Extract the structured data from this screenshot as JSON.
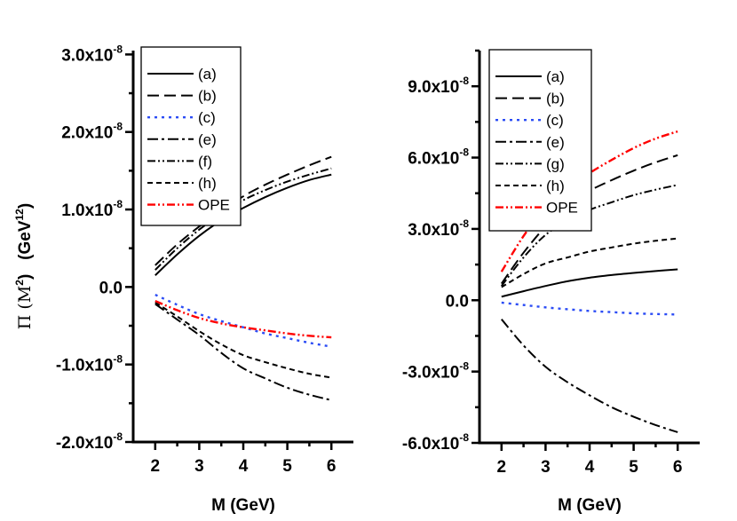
{
  "chart_data": [
    {
      "type": "line",
      "panel": "left",
      "xlabel": "M (GeV)",
      "ylabel": {
        "main": "Π (M",
        "sup1": "2",
        "mid": ")   (GeV",
        "sup2": "12",
        "end": ")"
      },
      "xlim": [
        1.5,
        6.5
      ],
      "ylim": [
        -2e-08,
        3.05e-08
      ],
      "x_ticks": [
        2,
        3,
        4,
        5,
        6
      ],
      "y_ticks": [
        {
          "value": 3e-08,
          "base": "3.0x10",
          "exp": "-8"
        },
        {
          "value": 2e-08,
          "base": "2.0x10",
          "exp": "-8"
        },
        {
          "value": 1e-08,
          "base": "1.0x10",
          "exp": "-8"
        },
        {
          "value": 0,
          "base": "0.0",
          "exp": ""
        },
        {
          "value": -1e-08,
          "base": "-1.0x10",
          "exp": "-8"
        },
        {
          "value": -2e-08,
          "base": "-2.0x10",
          "exp": "-8"
        }
      ],
      "y_minor_step": 5e-09,
      "unit": 1e-08,
      "legend_position": "top-left",
      "x": [
        2,
        2.5,
        3,
        3.5,
        4,
        4.5,
        5,
        5.5,
        6
      ],
      "series": [
        {
          "name": "(a)",
          "color": "#000000",
          "dash": "",
          "values": [
            0.15,
            0.42,
            0.66,
            0.86,
            1.02,
            1.16,
            1.28,
            1.38,
            1.45
          ]
        },
        {
          "name": "(b)",
          "color": "#000000",
          "dash": "13,6",
          "values": [
            0.28,
            0.55,
            0.78,
            0.98,
            1.17,
            1.32,
            1.45,
            1.57,
            1.68
          ]
        },
        {
          "name": "(c)",
          "color": "#2b4cf5",
          "dash": "3,5",
          "values": [
            -0.1,
            -0.23,
            -0.35,
            -0.44,
            -0.52,
            -0.6,
            -0.66,
            -0.72,
            -0.77
          ]
        },
        {
          "name": "(e)",
          "color": "#000000",
          "dash": "12,4,3,4",
          "values": [
            -0.22,
            -0.42,
            -0.62,
            -0.85,
            -1.05,
            -1.18,
            -1.3,
            -1.39,
            -1.46
          ]
        },
        {
          "name": "(f)",
          "color": "#000000",
          "dash": "9,3,2,3,2,3",
          "values": [
            0.22,
            0.5,
            0.74,
            0.94,
            1.12,
            1.25,
            1.36,
            1.45,
            1.53
          ]
        },
        {
          "name": "(h)",
          "color": "#000000",
          "dash": "6,4",
          "values": [
            -0.2,
            -0.38,
            -0.57,
            -0.74,
            -0.88,
            -0.97,
            -1.05,
            -1.12,
            -1.17
          ]
        },
        {
          "name": "OPE",
          "color": "#ff0000",
          "dash": "9,3,2,3,2,3",
          "values": [
            -0.18,
            -0.3,
            -0.4,
            -0.47,
            -0.52,
            -0.56,
            -0.6,
            -0.63,
            -0.65
          ]
        }
      ]
    },
    {
      "type": "line",
      "panel": "right",
      "xlabel": "M (GeV)",
      "xlim": [
        1.5,
        6.5
      ],
      "ylim": [
        -6e-08,
        1.05e-07
      ],
      "x_ticks": [
        2,
        3,
        4,
        5,
        6
      ],
      "y_ticks": [
        {
          "value": 9e-08,
          "base": "9.0x10",
          "exp": "-8"
        },
        {
          "value": 6e-08,
          "base": "6.0x10",
          "exp": "-8"
        },
        {
          "value": 3e-08,
          "base": "3.0x10",
          "exp": "-8"
        },
        {
          "value": 0,
          "base": "0.0",
          "exp": ""
        },
        {
          "value": -3e-08,
          "base": "-3.0x10",
          "exp": "-8"
        },
        {
          "value": -6e-08,
          "base": "-6.0x10",
          "exp": "-8"
        }
      ],
      "y_minor_step": 1.5e-08,
      "unit": 1e-08,
      "legend_position": "top-left",
      "x": [
        2,
        2.5,
        3,
        3.5,
        4,
        4.5,
        5,
        5.5,
        6
      ],
      "series": [
        {
          "name": "(a)",
          "color": "#000000",
          "dash": "",
          "values": [
            0.15,
            0.38,
            0.6,
            0.8,
            0.95,
            1.06,
            1.15,
            1.23,
            1.3
          ]
        },
        {
          "name": "(b)",
          "color": "#000000",
          "dash": "13,6",
          "values": [
            0.7,
            2.0,
            3.1,
            3.95,
            4.6,
            5.05,
            5.45,
            5.8,
            6.1
          ]
        },
        {
          "name": "(c)",
          "color": "#2b4cf5",
          "dash": "3,5",
          "values": [
            -0.1,
            -0.2,
            -0.3,
            -0.38,
            -0.45,
            -0.5,
            -0.55,
            -0.58,
            -0.6
          ]
        },
        {
          "name": "(e)",
          "color": "#000000",
          "dash": "12,4,3,4",
          "values": [
            -0.8,
            -1.9,
            -2.8,
            -3.45,
            -4.0,
            -4.5,
            -4.9,
            -5.25,
            -5.55
          ]
        },
        {
          "name": "(g)",
          "color": "#000000",
          "dash": "9,3,2,3,2,3",
          "values": [
            0.6,
            1.8,
            2.75,
            3.35,
            3.8,
            4.12,
            4.42,
            4.65,
            4.85
          ]
        },
        {
          "name": "(h)",
          "color": "#000000",
          "dash": "6,4",
          "values": [
            0.55,
            1.1,
            1.55,
            1.8,
            2.05,
            2.22,
            2.38,
            2.5,
            2.6
          ]
        },
        {
          "name": "OPE",
          "color": "#ff0000",
          "dash": "9,3,2,3,2,3",
          "values": [
            1.2,
            2.7,
            3.9,
            4.7,
            5.35,
            5.9,
            6.4,
            6.8,
            7.1
          ]
        }
      ]
    }
  ]
}
